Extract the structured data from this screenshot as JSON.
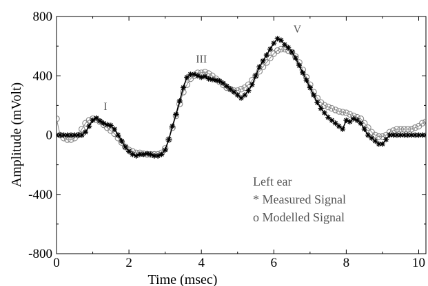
{
  "chart_data": {
    "type": "scatter",
    "title": "",
    "xlabel": "Time (msec)",
    "ylabel": "Amplitude (mVolt)",
    "xlim": [
      0,
      10.2
    ],
    "ylim": [
      -800,
      800
    ],
    "x_ticks": [
      0,
      2,
      4,
      6,
      8,
      10
    ],
    "x_tick_labels": [
      "0",
      "2",
      "4",
      "6",
      "8",
      "10"
    ],
    "y_ticks": [
      -800,
      -400,
      0,
      400,
      800
    ],
    "y_tick_labels": [
      "-800",
      "-400",
      "0",
      "400",
      "800"
    ],
    "grid": false,
    "legend": {
      "placement": "lower-right",
      "title": "Left ear",
      "entries": [
        "* Measured Signal",
        "o Modelled Signal"
      ]
    },
    "annotations": [
      {
        "text": "I",
        "x": 1.35,
        "y": 170
      },
      {
        "text": "III",
        "x": 4.0,
        "y": 490
      },
      {
        "text": "V",
        "x": 6.65,
        "y": 690
      }
    ],
    "series": [
      {
        "marker": "*",
        "color": "#000000",
        "x": [
          0,
          0.1,
          0.2,
          0.3,
          0.4,
          0.5,
          0.6,
          0.7,
          0.8,
          0.9,
          1.0,
          1.1,
          1.2,
          1.3,
          1.4,
          1.5,
          1.6,
          1.7,
          1.8,
          1.9,
          2.0,
          2.1,
          2.2,
          2.3,
          2.4,
          2.5,
          2.6,
          2.7,
          2.8,
          2.9,
          3.0,
          3.1,
          3.2,
          3.3,
          3.4,
          3.5,
          3.6,
          3.7,
          3.8,
          3.9,
          4.0,
          4.1,
          4.2,
          4.3,
          4.4,
          4.5,
          4.6,
          4.7,
          4.8,
          4.9,
          5.0,
          5.1,
          5.2,
          5.3,
          5.4,
          5.5,
          5.6,
          5.7,
          5.8,
          5.9,
          6.0,
          6.1,
          6.2,
          6.3,
          6.4,
          6.5,
          6.6,
          6.7,
          6.8,
          6.9,
          7.0,
          7.1,
          7.2,
          7.3,
          7.4,
          7.5,
          7.6,
          7.7,
          7.8,
          7.9,
          8.0,
          8.1,
          8.2,
          8.3,
          8.4,
          8.5,
          8.6,
          8.7,
          8.8,
          8.9,
          9.0,
          9.1,
          9.2,
          9.3,
          9.4,
          9.5,
          9.6,
          9.7,
          9.8,
          9.9,
          10.0,
          10.1,
          10.2
        ],
        "y": [
          0,
          0,
          0,
          0,
          0,
          0,
          0,
          0,
          20,
          60,
          100,
          115,
          95,
          80,
          70,
          65,
          40,
          0,
          -40,
          -80,
          -110,
          -130,
          -140,
          -130,
          -130,
          -125,
          -130,
          -140,
          -140,
          -130,
          -100,
          -30,
          60,
          140,
          230,
          320,
          390,
          410,
          410,
          400,
          390,
          395,
          380,
          375,
          370,
          365,
          350,
          330,
          310,
          290,
          270,
          250,
          270,
          300,
          340,
          400,
          460,
          500,
          540,
          580,
          620,
          650,
          640,
          610,
          590,
          560,
          520,
          470,
          420,
          370,
          320,
          270,
          220,
          180,
          150,
          120,
          100,
          80,
          60,
          40,
          100,
          90,
          110,
          100,
          80,
          40,
          0,
          -20,
          -40,
          -60,
          -60,
          -30,
          0,
          0,
          0,
          0,
          0,
          0,
          0,
          0,
          0,
          0,
          0
        ]
      },
      {
        "marker": "o",
        "color": "#888888",
        "x": [
          0,
          0.1,
          0.2,
          0.3,
          0.4,
          0.5,
          0.6,
          0.7,
          0.8,
          0.9,
          1.0,
          1.1,
          1.2,
          1.3,
          1.4,
          1.5,
          1.6,
          1.7,
          1.8,
          1.9,
          2.0,
          2.1,
          2.2,
          2.3,
          2.4,
          2.5,
          2.6,
          2.7,
          2.8,
          2.9,
          3.0,
          3.1,
          3.2,
          3.3,
          3.4,
          3.5,
          3.6,
          3.7,
          3.8,
          3.9,
          4.0,
          4.1,
          4.2,
          4.3,
          4.4,
          4.5,
          4.6,
          4.7,
          4.8,
          4.9,
          5.0,
          5.1,
          5.2,
          5.3,
          5.4,
          5.5,
          5.6,
          5.7,
          5.8,
          5.9,
          6.0,
          6.1,
          6.2,
          6.3,
          6.4,
          6.5,
          6.6,
          6.7,
          6.8,
          6.9,
          7.0,
          7.1,
          7.2,
          7.3,
          7.4,
          7.5,
          7.6,
          7.7,
          7.8,
          7.9,
          8.0,
          8.1,
          8.2,
          8.3,
          8.4,
          8.5,
          8.6,
          8.7,
          8.8,
          8.9,
          9.0,
          9.1,
          9.2,
          9.3,
          9.4,
          9.5,
          9.6,
          9.7,
          9.8,
          9.9,
          10.0,
          10.1,
          10.2
        ],
        "y": [
          110,
          0,
          -20,
          -30,
          -30,
          -20,
          0,
          40,
          80,
          100,
          110,
          105,
          90,
          70,
          50,
          30,
          10,
          -20,
          -50,
          -80,
          -100,
          -110,
          -120,
          -120,
          -125,
          -130,
          -130,
          -130,
          -130,
          -120,
          -90,
          -30,
          50,
          130,
          210,
          290,
          340,
          380,
          400,
          420,
          420,
          425,
          415,
          400,
          380,
          360,
          340,
          320,
          310,
          300,
          300,
          310,
          320,
          340,
          370,
          400,
          430,
          460,
          490,
          520,
          550,
          570,
          580,
          580,
          570,
          560,
          530,
          490,
          440,
          390,
          340,
          290,
          250,
          220,
          200,
          190,
          180,
          170,
          160,
          155,
          150,
          140,
          130,
          120,
          110,
          80,
          50,
          20,
          0,
          -10,
          -10,
          0,
          20,
          30,
          40,
          40,
          40,
          40,
          40,
          50,
          60,
          80,
          90
        ]
      }
    ]
  }
}
